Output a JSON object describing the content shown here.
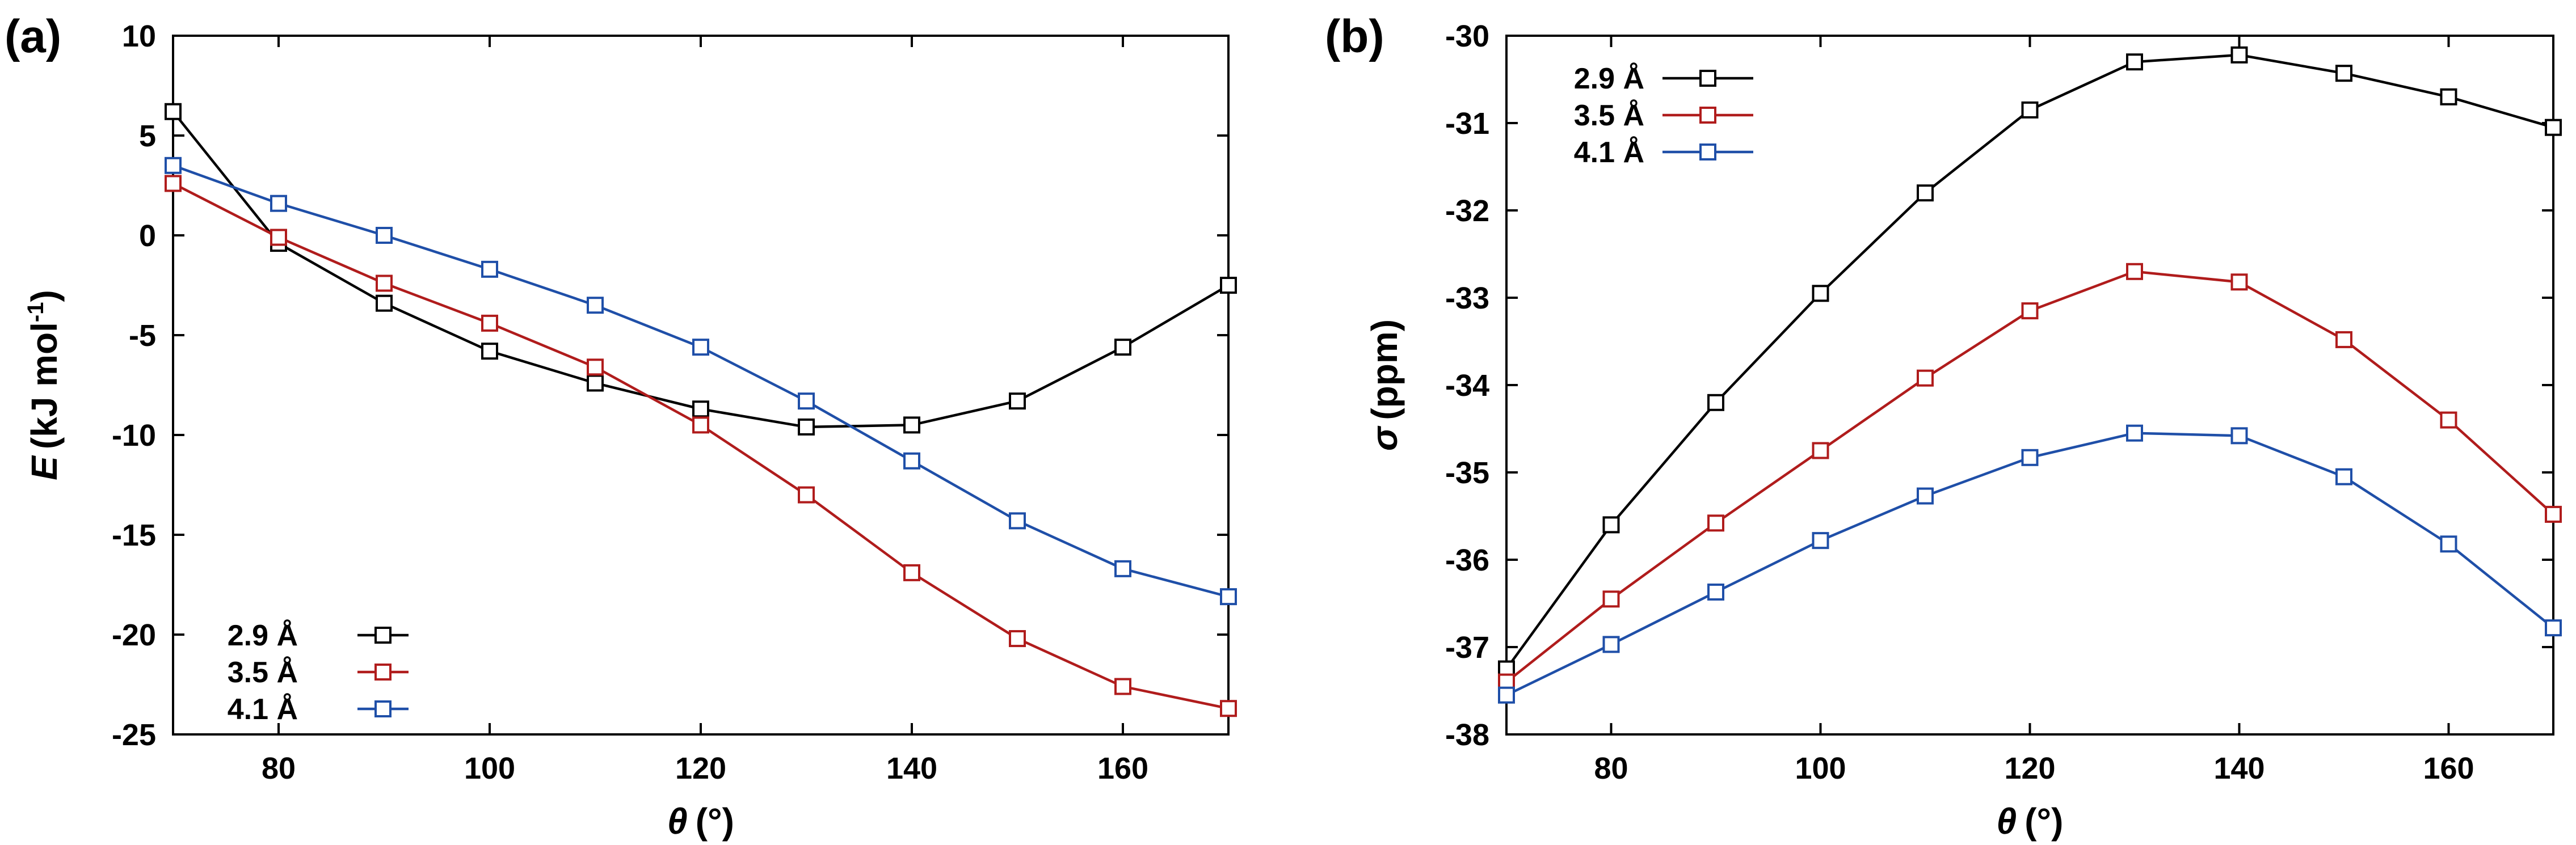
{
  "chart_data": [
    {
      "type": "line",
      "panel_label": "(a)",
      "title": "",
      "xlabel": {
        "symbol": "θ",
        "unit": "(°)"
      },
      "ylabel": {
        "symbol": "E",
        "unit": "(kJ mol",
        "sup": "-1",
        "close": ")"
      },
      "xlim": [
        70,
        170
      ],
      "ylim": [
        -25,
        10
      ],
      "xticks": [
        80,
        100,
        120,
        140,
        160
      ],
      "yticks": [
        -25,
        -20,
        -15,
        -10,
        -5,
        0,
        5,
        10
      ],
      "grid": false,
      "legend_position": "bottom-left",
      "marker": "open-square",
      "x": [
        70,
        80,
        90,
        100,
        110,
        120,
        130,
        140,
        150,
        160,
        170
      ],
      "series": [
        {
          "name": "2.9 Å",
          "color": "#000000",
          "values": [
            6.2,
            -0.4,
            -3.4,
            -5.8,
            -7.4,
            -8.7,
            -9.6,
            -9.5,
            -8.3,
            -5.6,
            -2.5
          ]
        },
        {
          "name": "3.5 Å",
          "color": "#b01c1c",
          "values": [
            2.6,
            -0.1,
            -2.4,
            -4.4,
            -6.6,
            -9.5,
            -13.0,
            -16.9,
            -20.2,
            -22.6,
            -23.7
          ]
        },
        {
          "name": "4.1 Å",
          "color": "#1f4fa8",
          "values": [
            3.5,
            1.6,
            0.0,
            -1.7,
            -3.5,
            -5.6,
            -8.3,
            -11.3,
            -14.3,
            -16.7,
            -18.1
          ]
        }
      ]
    },
    {
      "type": "line",
      "panel_label": "(b)",
      "title": "",
      "xlabel": {
        "symbol": "θ",
        "unit": "(°)"
      },
      "ylabel": {
        "symbol": "σ",
        "unit": "(ppm)"
      },
      "xlim": [
        70,
        170
      ],
      "ylim": [
        -38,
        -30
      ],
      "xticks": [
        80,
        100,
        120,
        140,
        160
      ],
      "yticks": [
        -38,
        -37,
        -36,
        -35,
        -34,
        -33,
        -32,
        -31,
        -30
      ],
      "grid": false,
      "legend_position": "top-left",
      "marker": "open-square",
      "x": [
        70,
        80,
        90,
        100,
        110,
        120,
        130,
        140,
        150,
        160,
        170
      ],
      "series": [
        {
          "name": "2.9 Å",
          "color": "#000000",
          "values": [
            -37.25,
            -35.6,
            -34.2,
            -32.95,
            -31.8,
            -30.85,
            -30.3,
            -30.22,
            -30.43,
            -30.7,
            -31.05
          ]
        },
        {
          "name": "3.5 Å",
          "color": "#b01c1c",
          "values": [
            -37.4,
            -36.45,
            -35.58,
            -34.75,
            -33.92,
            -33.15,
            -32.7,
            -32.82,
            -33.48,
            -34.4,
            -35.48
          ]
        },
        {
          "name": "4.1 Å",
          "color": "#1f4fa8",
          "values": [
            -37.55,
            -36.97,
            -36.37,
            -35.78,
            -35.27,
            -34.83,
            -34.55,
            -34.58,
            -35.05,
            -35.82,
            -36.78
          ]
        }
      ]
    }
  ]
}
